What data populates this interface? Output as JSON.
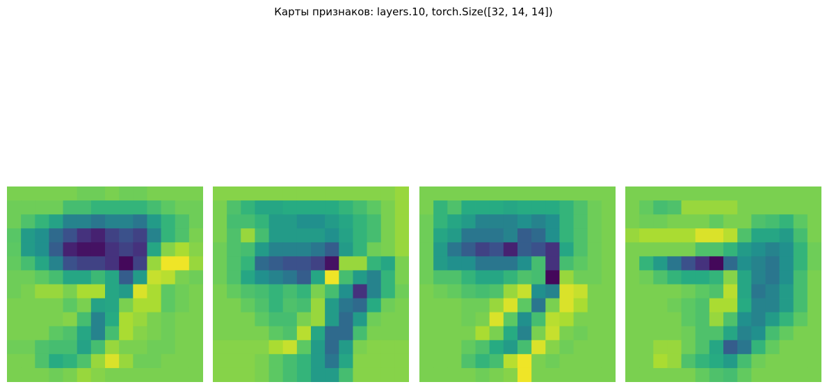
{
  "title": "Карты признаков: layers.10, torch.Size([32, 14, 14])",
  "chart_data": {
    "type": "heatmap",
    "colormap": "viridis",
    "value_range": [
      0,
      1
    ],
    "axes": "off",
    "maps": [
      {
        "rows": 14,
        "cols": 14,
        "values": [
          [
            0.8,
            0.8,
            0.8,
            0.8,
            0.8,
            0.78,
            0.78,
            0.8,
            0.78,
            0.78,
            0.8,
            0.8,
            0.8,
            0.8
          ],
          [
            0.78,
            0.78,
            0.78,
            0.78,
            0.7,
            0.7,
            0.66,
            0.66,
            0.66,
            0.66,
            0.7,
            0.75,
            0.78,
            0.78
          ],
          [
            0.78,
            0.72,
            0.66,
            0.58,
            0.45,
            0.45,
            0.4,
            0.45,
            0.45,
            0.4,
            0.55,
            0.66,
            0.72,
            0.78
          ],
          [
            0.74,
            0.55,
            0.5,
            0.35,
            0.25,
            0.15,
            0.1,
            0.2,
            0.25,
            0.2,
            0.45,
            0.66,
            0.72,
            0.8
          ],
          [
            0.75,
            0.55,
            0.5,
            0.3,
            0.1,
            0.05,
            0.05,
            0.15,
            0.2,
            0.15,
            0.6,
            0.82,
            0.88,
            0.82
          ],
          [
            0.76,
            0.7,
            0.6,
            0.45,
            0.25,
            0.2,
            0.2,
            0.15,
            0.02,
            0.2,
            0.85,
            0.98,
            0.98,
            0.85
          ],
          [
            0.78,
            0.78,
            0.75,
            0.7,
            0.6,
            0.6,
            0.68,
            0.6,
            0.3,
            0.55,
            0.92,
            0.9,
            0.8,
            0.78
          ],
          [
            0.78,
            0.8,
            0.85,
            0.85,
            0.8,
            0.88,
            0.88,
            0.6,
            0.55,
            0.95,
            0.88,
            0.75,
            0.78,
            0.8
          ],
          [
            0.8,
            0.8,
            0.8,
            0.8,
            0.75,
            0.8,
            0.58,
            0.6,
            0.8,
            0.88,
            0.88,
            0.75,
            0.78,
            0.8
          ],
          [
            0.8,
            0.8,
            0.8,
            0.8,
            0.82,
            0.7,
            0.45,
            0.62,
            0.88,
            0.85,
            0.8,
            0.78,
            0.8,
            0.8
          ],
          [
            0.8,
            0.8,
            0.8,
            0.75,
            0.72,
            0.6,
            0.45,
            0.7,
            0.88,
            0.82,
            0.8,
            0.78,
            0.8,
            0.8
          ],
          [
            0.78,
            0.78,
            0.72,
            0.7,
            0.7,
            0.58,
            0.7,
            0.85,
            0.8,
            0.8,
            0.78,
            0.78,
            0.8,
            0.8
          ],
          [
            0.8,
            0.8,
            0.72,
            0.62,
            0.65,
            0.72,
            0.85,
            0.95,
            0.85,
            0.78,
            0.78,
            0.8,
            0.8,
            0.8
          ],
          [
            0.8,
            0.8,
            0.8,
            0.78,
            0.8,
            0.85,
            0.82,
            0.8,
            0.8,
            0.8,
            0.8,
            0.8,
            0.8,
            0.8
          ]
        ]
      },
      {
        "rows": 14,
        "cols": 14,
        "values": [
          [
            0.82,
            0.82,
            0.82,
            0.82,
            0.82,
            0.82,
            0.82,
            0.82,
            0.82,
            0.82,
            0.82,
            0.82,
            0.82,
            0.85
          ],
          [
            0.8,
            0.72,
            0.66,
            0.6,
            0.6,
            0.62,
            0.62,
            0.62,
            0.62,
            0.66,
            0.7,
            0.75,
            0.8,
            0.85
          ],
          [
            0.8,
            0.7,
            0.7,
            0.66,
            0.55,
            0.55,
            0.5,
            0.5,
            0.55,
            0.6,
            0.66,
            0.7,
            0.8,
            0.85
          ],
          [
            0.8,
            0.72,
            0.85,
            0.7,
            0.55,
            0.55,
            0.55,
            0.55,
            0.5,
            0.58,
            0.66,
            0.7,
            0.8,
            0.85
          ],
          [
            0.78,
            0.72,
            0.7,
            0.55,
            0.45,
            0.45,
            0.45,
            0.4,
            0.3,
            0.55,
            0.66,
            0.78,
            0.8,
            0.85
          ],
          [
            0.78,
            0.72,
            0.66,
            0.35,
            0.3,
            0.25,
            0.25,
            0.2,
            0.05,
            0.85,
            0.85,
            0.66,
            0.6,
            0.8
          ],
          [
            0.78,
            0.72,
            0.6,
            0.5,
            0.45,
            0.4,
            0.3,
            0.6,
            0.98,
            0.7,
            0.55,
            0.45,
            0.66,
            0.8
          ],
          [
            0.8,
            0.76,
            0.72,
            0.7,
            0.66,
            0.7,
            0.66,
            0.8,
            0.7,
            0.5,
            0.15,
            0.45,
            0.66,
            0.78
          ],
          [
            0.8,
            0.8,
            0.76,
            0.72,
            0.66,
            0.72,
            0.7,
            0.85,
            0.55,
            0.4,
            0.35,
            0.62,
            0.78,
            0.8
          ],
          [
            0.8,
            0.8,
            0.8,
            0.75,
            0.7,
            0.7,
            0.8,
            0.85,
            0.55,
            0.35,
            0.55,
            0.78,
            0.8,
            0.8
          ],
          [
            0.8,
            0.8,
            0.8,
            0.8,
            0.75,
            0.72,
            0.9,
            0.6,
            0.35,
            0.35,
            0.7,
            0.8,
            0.8,
            0.8
          ],
          [
            0.82,
            0.82,
            0.82,
            0.82,
            0.88,
            0.92,
            0.75,
            0.55,
            0.35,
            0.55,
            0.8,
            0.82,
            0.82,
            0.82
          ],
          [
            0.82,
            0.82,
            0.82,
            0.8,
            0.75,
            0.7,
            0.66,
            0.55,
            0.4,
            0.6,
            0.82,
            0.82,
            0.82,
            0.82
          ],
          [
            0.82,
            0.82,
            0.82,
            0.8,
            0.75,
            0.7,
            0.66,
            0.55,
            0.55,
            0.7,
            0.82,
            0.82,
            0.82,
            0.82
          ]
        ]
      },
      {
        "rows": 14,
        "cols": 14,
        "values": [
          [
            0.8,
            0.8,
            0.8,
            0.8,
            0.8,
            0.8,
            0.8,
            0.8,
            0.8,
            0.8,
            0.8,
            0.8,
            0.8,
            0.8
          ],
          [
            0.8,
            0.66,
            0.72,
            0.62,
            0.62,
            0.62,
            0.6,
            0.62,
            0.62,
            0.62,
            0.66,
            0.72,
            0.78,
            0.8
          ],
          [
            0.78,
            0.66,
            0.6,
            0.55,
            0.45,
            0.45,
            0.45,
            0.5,
            0.45,
            0.5,
            0.66,
            0.72,
            0.78,
            0.8
          ],
          [
            0.78,
            0.6,
            0.55,
            0.4,
            0.4,
            0.4,
            0.45,
            0.3,
            0.35,
            0.5,
            0.66,
            0.72,
            0.78,
            0.8
          ],
          [
            0.78,
            0.55,
            0.4,
            0.3,
            0.2,
            0.25,
            0.1,
            0.3,
            0.25,
            0.15,
            0.6,
            0.72,
            0.78,
            0.8
          ],
          [
            0.78,
            0.55,
            0.5,
            0.5,
            0.4,
            0.4,
            0.4,
            0.5,
            0.7,
            0.15,
            0.7,
            0.75,
            0.78,
            0.8
          ],
          [
            0.78,
            0.72,
            0.72,
            0.66,
            0.6,
            0.6,
            0.66,
            0.72,
            0.7,
            0.02,
            0.85,
            0.78,
            0.78,
            0.8
          ],
          [
            0.8,
            0.78,
            0.76,
            0.72,
            0.7,
            0.72,
            0.85,
            0.92,
            0.5,
            0.45,
            0.95,
            0.92,
            0.8,
            0.8
          ],
          [
            0.8,
            0.8,
            0.8,
            0.78,
            0.78,
            0.85,
            0.95,
            0.75,
            0.4,
            0.8,
            0.95,
            0.88,
            0.8,
            0.8
          ],
          [
            0.8,
            0.8,
            0.8,
            0.78,
            0.8,
            0.95,
            0.75,
            0.5,
            0.7,
            0.9,
            0.88,
            0.8,
            0.8,
            0.8
          ],
          [
            0.8,
            0.8,
            0.8,
            0.8,
            0.88,
            0.8,
            0.62,
            0.45,
            0.8,
            0.92,
            0.8,
            0.78,
            0.8,
            0.8
          ],
          [
            0.8,
            0.8,
            0.8,
            0.76,
            0.72,
            0.62,
            0.55,
            0.7,
            0.95,
            0.82,
            0.78,
            0.8,
            0.8,
            0.8
          ],
          [
            0.8,
            0.8,
            0.8,
            0.72,
            0.66,
            0.7,
            0.9,
            0.98,
            0.8,
            0.78,
            0.8,
            0.8,
            0.8,
            0.8
          ],
          [
            0.8,
            0.8,
            0.8,
            0.8,
            0.78,
            0.8,
            0.82,
            0.98,
            0.8,
            0.8,
            0.8,
            0.8,
            0.8,
            0.8
          ]
        ]
      },
      {
        "rows": 14,
        "cols": 14,
        "values": [
          [
            0.8,
            0.8,
            0.8,
            0.8,
            0.8,
            0.8,
            0.8,
            0.8,
            0.8,
            0.8,
            0.8,
            0.8,
            0.8,
            0.8
          ],
          [
            0.8,
            0.76,
            0.7,
            0.72,
            0.85,
            0.85,
            0.85,
            0.85,
            0.8,
            0.8,
            0.8,
            0.8,
            0.8,
            0.8
          ],
          [
            0.8,
            0.78,
            0.78,
            0.8,
            0.8,
            0.8,
            0.76,
            0.8,
            0.8,
            0.72,
            0.7,
            0.66,
            0.75,
            0.8
          ],
          [
            0.85,
            0.88,
            0.88,
            0.88,
            0.88,
            0.95,
            0.95,
            0.9,
            0.72,
            0.6,
            0.6,
            0.55,
            0.7,
            0.8
          ],
          [
            0.8,
            0.8,
            0.8,
            0.8,
            0.8,
            0.72,
            0.72,
            0.66,
            0.55,
            0.5,
            0.45,
            0.5,
            0.66,
            0.78
          ],
          [
            0.8,
            0.66,
            0.55,
            0.4,
            0.25,
            0.15,
            0.02,
            0.35,
            0.5,
            0.45,
            0.4,
            0.5,
            0.66,
            0.78
          ],
          [
            0.8,
            0.78,
            0.72,
            0.66,
            0.62,
            0.62,
            0.66,
            0.82,
            0.6,
            0.45,
            0.4,
            0.5,
            0.7,
            0.8
          ],
          [
            0.8,
            0.8,
            0.8,
            0.8,
            0.78,
            0.75,
            0.72,
            0.9,
            0.6,
            0.4,
            0.45,
            0.55,
            0.7,
            0.8
          ],
          [
            0.8,
            0.8,
            0.8,
            0.78,
            0.75,
            0.72,
            0.88,
            0.88,
            0.62,
            0.45,
            0.45,
            0.55,
            0.7,
            0.8
          ],
          [
            0.8,
            0.8,
            0.8,
            0.8,
            0.75,
            0.72,
            0.85,
            0.72,
            0.5,
            0.45,
            0.55,
            0.66,
            0.75,
            0.8
          ],
          [
            0.8,
            0.8,
            0.8,
            0.8,
            0.78,
            0.72,
            0.72,
            0.6,
            0.45,
            0.5,
            0.7,
            0.76,
            0.8,
            0.8
          ],
          [
            0.8,
            0.8,
            0.85,
            0.85,
            0.78,
            0.72,
            0.6,
            0.3,
            0.4,
            0.66,
            0.76,
            0.8,
            0.8,
            0.8
          ],
          [
            0.8,
            0.8,
            0.88,
            0.85,
            0.72,
            0.66,
            0.62,
            0.55,
            0.7,
            0.78,
            0.8,
            0.8,
            0.8,
            0.8
          ],
          [
            0.8,
            0.8,
            0.8,
            0.8,
            0.8,
            0.76,
            0.72,
            0.7,
            0.76,
            0.8,
            0.8,
            0.8,
            0.8,
            0.8
          ]
        ]
      }
    ]
  }
}
